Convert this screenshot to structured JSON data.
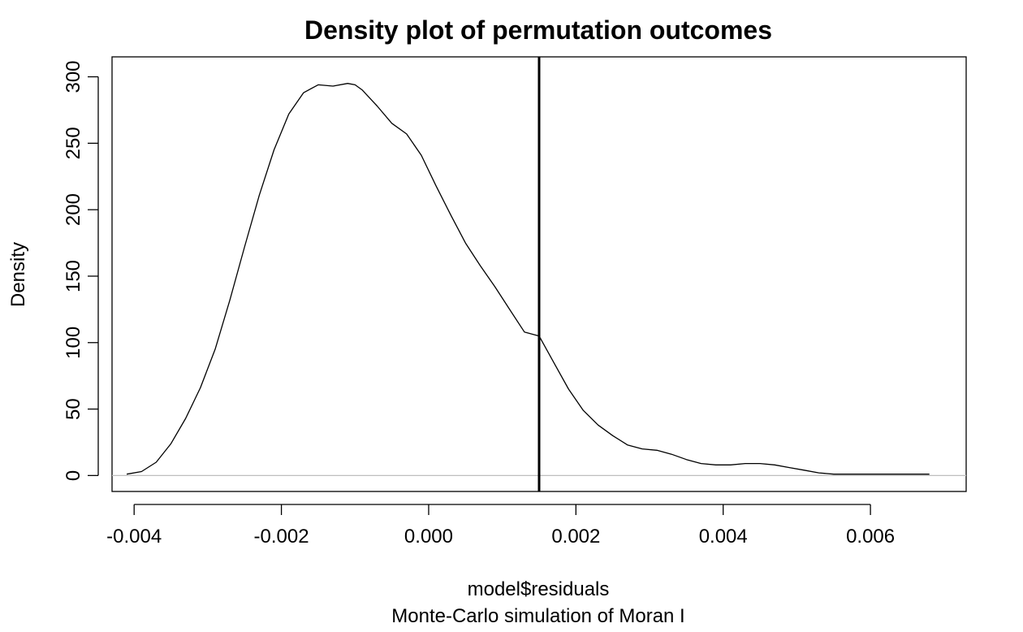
{
  "chart_data": {
    "type": "line",
    "title": "Density plot of permutation outcomes",
    "xlabel": "model$residuals",
    "subtitle": "Monte-Carlo simulation of Moran I",
    "ylabel": "Density",
    "xlim": [
      -0.0043,
      0.0073
    ],
    "ylim": [
      -12,
      315
    ],
    "x_ticks": [
      -0.004,
      -0.002,
      0.0,
      0.002,
      0.004,
      0.006
    ],
    "x_tick_labels": [
      "-0.004",
      "-0.002",
      "0.000",
      "0.002",
      "0.004",
      "0.006"
    ],
    "y_ticks": [
      0,
      50,
      100,
      150,
      200,
      250,
      300
    ],
    "y_tick_labels": [
      "0",
      "50",
      "100",
      "150",
      "200",
      "250",
      "300"
    ],
    "grid": false,
    "legend": "none",
    "baseline": {
      "y": 0,
      "color": "#bebebe"
    },
    "vline": {
      "x": 0.0015,
      "color": "#000000"
    },
    "series": [
      {
        "color": "#000000",
        "x": [
          -0.0041,
          -0.0039,
          -0.0037,
          -0.0035,
          -0.0033,
          -0.0031,
          -0.0029,
          -0.0027,
          -0.0025,
          -0.0023,
          -0.0021,
          -0.0019,
          -0.0017,
          -0.0015,
          -0.0013,
          -0.0011,
          -0.001,
          -0.0009,
          -0.0007,
          -0.0005,
          -0.0003,
          -0.0001,
          0.0001,
          0.0003,
          0.0005,
          0.0007,
          0.0009,
          0.0011,
          0.0013,
          0.0015,
          0.0017,
          0.0019,
          0.0021,
          0.0023,
          0.0025,
          0.0027,
          0.0029,
          0.0031,
          0.0033,
          0.0035,
          0.0037,
          0.0039,
          0.0041,
          0.0043,
          0.0045,
          0.0047,
          0.0049,
          0.0051,
          0.0053,
          0.0055,
          0.0057,
          0.0059,
          0.0061,
          0.0063,
          0.0065,
          0.0068
        ],
        "y": [
          1,
          3,
          10,
          24,
          43,
          66,
          95,
          132,
          172,
          211,
          245,
          272,
          288,
          294,
          293,
          295,
          294,
          290,
          278,
          265,
          257,
          241,
          218,
          196,
          175,
          158,
          142,
          125,
          108,
          105,
          85,
          65,
          49,
          38,
          30,
          23,
          20,
          19,
          16,
          12,
          9,
          8,
          8,
          9,
          9,
          8,
          6,
          4,
          2,
          1,
          1,
          1,
          1,
          1,
          1,
          1
        ]
      }
    ]
  }
}
